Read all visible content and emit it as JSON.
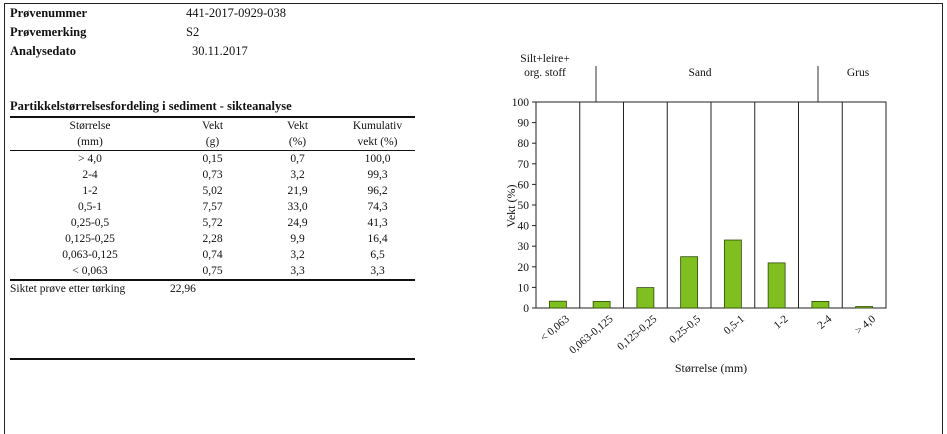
{
  "meta": {
    "sample_number_label": "Prøvenummer",
    "sample_number": "441-2017-0929-038",
    "sample_marking_label": "Prøvemerking",
    "sample_marking": "S2",
    "analysis_date_label": "Analysedato",
    "analysis_date": "30.11.2017"
  },
  "section_title": "Partikkelstørrelsesfordeling i sediment - sikteanalyse",
  "table": {
    "header_row1": [
      "Størrelse",
      "Vekt",
      "Vekt",
      "Kumulativ"
    ],
    "header_row2": [
      "(mm)",
      "(g)",
      "(%)",
      "vekt (%)"
    ],
    "rows": [
      [
        "> 4,0",
        "0,15",
        "0,7",
        "100,0"
      ],
      [
        "2-4",
        "0,73",
        "3,2",
        "99,3"
      ],
      [
        "1-2",
        "5,02",
        "21,9",
        "96,2"
      ],
      [
        "0,5-1",
        "7,57",
        "33,0",
        "74,3"
      ],
      [
        "0,25-0,5",
        "5,72",
        "24,9",
        "41,3"
      ],
      [
        "0,125-0,25",
        "2,28",
        "9,9",
        "16,4"
      ],
      [
        "0,063-0,125",
        "0,74",
        "3,2",
        "6,5"
      ],
      [
        "< 0,063",
        "0,75",
        "3,3",
        "3,3"
      ]
    ],
    "sum_label": "Siktet prøve etter tørking",
    "sum_value": "22,96"
  },
  "chart_data": {
    "type": "bar",
    "categories": [
      "< 0,063",
      "0,063-0,125",
      "0,125-0,25",
      "0,25-0,5",
      "0,5-1",
      "1-2",
      "2-4",
      "> 4,0"
    ],
    "values": [
      3.3,
      3.2,
      9.9,
      24.9,
      33.0,
      21.9,
      3.2,
      0.7
    ],
    "xlabel": "Størrelse (mm)",
    "ylabel": "Vekt (%)",
    "ylim": [
      0,
      100
    ],
    "yticks": [
      0,
      10,
      20,
      30,
      40,
      50,
      60,
      70,
      80,
      90,
      100
    ],
    "bar_color": "#7fbf1f",
    "bar_edge_color": "#2f4a0a",
    "zones": [
      "Silt+leire+ org. stoff",
      "Sand",
      "Grus"
    ],
    "grid": false
  }
}
